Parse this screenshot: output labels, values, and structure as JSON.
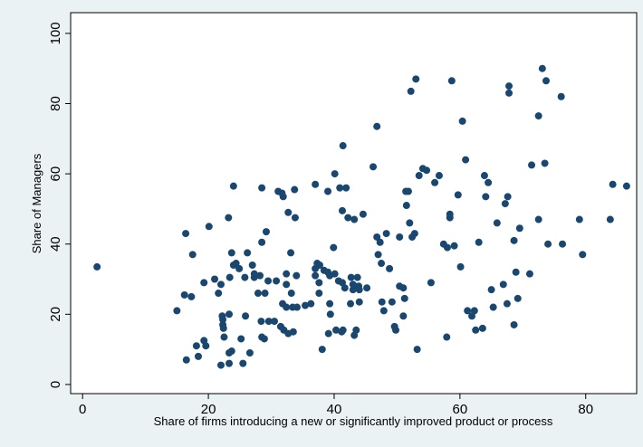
{
  "chart_data": {
    "type": "scatter",
    "xlabel": "Share of firms introducing a new or significantly improved product or process",
    "ylabel": "Share of Managers",
    "color": "#1a476f",
    "grid": false,
    "xlim": [
      -1.9,
      88.1
    ],
    "ylim": [
      -2.6,
      105.9
    ],
    "xticks": [
      0,
      20,
      40,
      60,
      80
    ],
    "yticks": [
      0,
      20,
      40,
      60,
      80,
      100
    ],
    "x": [
      2.3,
      15,
      16.2,
      16.4,
      16.5,
      17.3,
      17.5,
      18.1,
      18.4,
      19.3,
      19.6,
      19.3,
      20.1,
      21,
      21.6,
      22,
      22,
      22.2,
      22.3,
      22.3,
      22.4,
      22.5,
      23.2,
      23.3,
      23.3,
      23.3,
      23.4,
      23.7,
      23.7,
      24,
      24,
      24.4,
      24.9,
      25.2,
      25.5,
      25.8,
      25.9,
      26.2,
      26.6,
      27,
      27.3,
      27.3,
      27.9,
      28.2,
      28.4,
      28.5,
      28.5,
      28.5,
      28.9,
      29,
      29.2,
      29.5,
      29.6,
      30.5,
      30.8,
      31.1,
      31.5,
      31.7,
      31.8,
      31.9,
      32,
      32.4,
      32.4,
      32.4,
      32.7,
      32.7,
      33.1,
      33.2,
      33.4,
      33.7,
      33.8,
      33.5,
      34.1,
      34,
      35.4,
      36.3,
      37,
      37,
      37,
      37.3,
      37.6,
      37.6,
      37.7,
      38.1,
      38.4,
      39,
      39,
      39.1,
      39.3,
      39.4,
      39.3,
      39.9,
      40.1,
      40.1,
      40.3,
      40.7,
      40.9,
      41.2,
      41.3,
      41.3,
      41.4,
      41.7,
      41.9,
      41.4,
      42.2,
      42.6,
      42.7,
      43,
      43,
      43.2,
      43.2,
      43.5,
      43.7,
      43.9,
      44,
      44,
      44.6,
      45.2,
      46.2,
      46.8,
      46.8,
      47,
      47.3,
      47.5,
      47.6,
      47.9,
      48.3,
      48.8,
      49.2,
      49.6,
      49.8,
      50.4,
      50.4,
      51,
      51,
      51.4,
      51.5,
      51.2,
      51.8,
      52,
      52.4,
      52.2,
      52.8,
      53,
      53.2,
      54.1,
      53.5,
      54.7,
      55.4,
      56,
      56.7,
      57.4,
      57.9,
      58,
      58.4,
      58.4,
      58.7,
      59.1,
      59.7,
      60.1,
      60.4,
      60.9,
      61.2,
      61.9,
      62.3,
      62.5,
      63,
      63.6,
      63.9,
      64.5,
      64.1,
      65,
      65.3,
      65.9,
      66.9,
      67.2,
      67.5,
      67.6,
      67.8,
      67.8,
      68.6,
      68.6,
      68.9,
      69.2,
      69.5,
      71.1,
      71.4,
      72.5,
      72.5,
      73.1,
      73.5,
      73.7,
      74,
      76.1,
      76.3,
      79,
      79.5,
      83.9,
      84.3,
      86.5
    ],
    "values": [
      33.5,
      21,
      25.5,
      43,
      7,
      25,
      37,
      11,
      8,
      12.5,
      11,
      29,
      45,
      30,
      26,
      5.5,
      28.5,
      19.5,
      18.5,
      17,
      16,
      13.5,
      47.5,
      9,
      20,
      6,
      30.5,
      37.5,
      9.5,
      34,
      56.5,
      34.5,
      33,
      13,
      6,
      30.5,
      19.5,
      37.5,
      9,
      34,
      30.5,
      31.5,
      26,
      31,
      18,
      56,
      40.5,
      13.5,
      13,
      26,
      43.5,
      29.5,
      18,
      18,
      29.5,
      55,
      16.5,
      54.5,
      23,
      53.5,
      15.5,
      31.5,
      28.5,
      22,
      49,
      14.5,
      37.5,
      26,
      22,
      55.5,
      47.5,
      15,
      22,
      31,
      22.5,
      23,
      57,
      33,
      31,
      34.5,
      26,
      29,
      34,
      10,
      32.5,
      55,
      32,
      14.5,
      23,
      20,
      31,
      39,
      60,
      31.5,
      15.5,
      29.5,
      56,
      15,
      49.5,
      29,
      68,
      27.5,
      56,
      15.5,
      47.5,
      23,
      30.5,
      28.5,
      27,
      14,
      47,
      15.5,
      30.5,
      28,
      23.5,
      27,
      48.5,
      27.5,
      62,
      73.5,
      42,
      37,
      40.5,
      34.5,
      23.5,
      21,
      43,
      33,
      23.5,
      16.5,
      15.5,
      42,
      28,
      27.5,
      19.5,
      55,
      51,
      24.5,
      55,
      46,
      42,
      83.5,
      43,
      87,
      10,
      61.5,
      59.5,
      61,
      29,
      57.5,
      59.5,
      40,
      13.5,
      39,
      48.5,
      47.5,
      86.5,
      39.5,
      54,
      33.5,
      75,
      64,
      21,
      19.5,
      21,
      15.5,
      40.5,
      16,
      59.5,
      57.5,
      53.5,
      27,
      22,
      46,
      28.5,
      51.5,
      23,
      53.5,
      83,
      85,
      41,
      17,
      32,
      24.5,
      44.5,
      31.5,
      62.5,
      47,
      76.5,
      90,
      63,
      86.5,
      40,
      82,
      40,
      47,
      37,
      47,
      57,
      56.5
    ]
  }
}
